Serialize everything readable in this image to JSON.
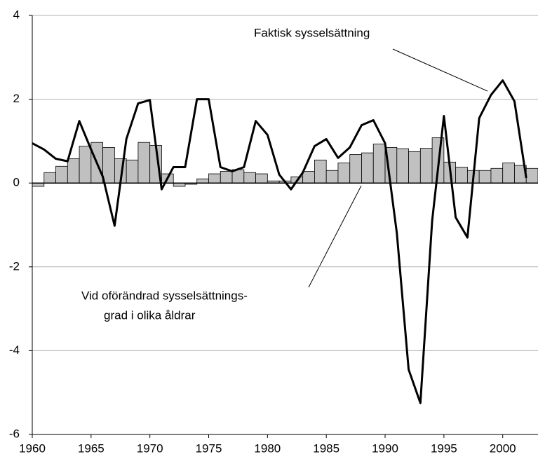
{
  "chart_data": {
    "type": "bar",
    "annotations": [
      "Faktisk sysselsättning",
      "Vid oförändrad sysselsättnings-",
      "grad i olika åldrar"
    ],
    "x": [
      1960,
      1961,
      1962,
      1963,
      1964,
      1965,
      1966,
      1967,
      1968,
      1969,
      1970,
      1971,
      1972,
      1973,
      1974,
      1975,
      1976,
      1977,
      1978,
      1979,
      1980,
      1981,
      1982,
      1983,
      1984,
      1985,
      1986,
      1987,
      1988,
      1989,
      1990,
      1991,
      1992,
      1993,
      1994,
      1995,
      1996,
      1997,
      1998,
      1999,
      2000,
      2001,
      2002
    ],
    "series": [
      {
        "type": "bar",
        "color": "#c0c0c0",
        "values": [
          -0.08,
          0.25,
          0.4,
          0.58,
          0.88,
          0.97,
          0.85,
          0.58,
          0.55,
          0.97,
          0.9,
          0.22,
          -0.08,
          -0.03,
          0.1,
          0.22,
          0.28,
          0.32,
          0.25,
          0.22,
          0.05,
          0.05,
          0.15,
          0.28,
          0.55,
          0.3,
          0.48,
          0.68,
          0.72,
          0.93,
          0.85,
          0.82,
          0.75,
          0.83,
          1.08,
          0.5,
          0.38,
          0.3,
          0.3,
          0.35,
          0.48,
          0.42,
          0.35
        ]
      },
      {
        "type": "line",
        "color": "#000000",
        "values": [
          0.95,
          0.8,
          0.58,
          0.52,
          1.48,
          0.8,
          0.15,
          -1.02,
          1.05,
          1.9,
          1.98,
          -0.15,
          0.38,
          0.38,
          2.0,
          2.0,
          0.38,
          0.28,
          0.38,
          1.48,
          1.15,
          0.2,
          -0.15,
          0.25,
          0.88,
          1.05,
          0.6,
          0.85,
          1.38,
          1.5,
          0.95,
          -1.2,
          -4.45,
          -5.25,
          -0.9,
          1.6,
          -0.82,
          -1.3,
          1.55,
          2.1,
          2.45,
          1.95,
          0.12
        ]
      }
    ],
    "xlim": [
      1960,
      2003
    ],
    "xticks": [
      1960,
      1965,
      1970,
      1975,
      1980,
      1985,
      1990,
      1995,
      2000
    ],
    "ylim": [
      -6,
      4
    ],
    "yticks": [
      -6,
      -4,
      -2,
      0,
      2,
      4
    ],
    "grid": true
  }
}
